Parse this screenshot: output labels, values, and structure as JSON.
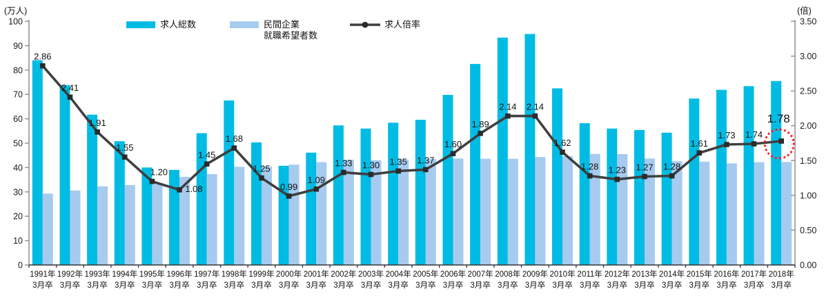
{
  "chart_data": {
    "type": "combo-bar-line",
    "title": "",
    "categories": [
      "1991年",
      "1992年",
      "1993年",
      "1994年",
      "1995年",
      "1996年",
      "1997年",
      "1998年",
      "1999年",
      "2000年",
      "2001年",
      "2002年",
      "2003年",
      "2004年",
      "2005年",
      "2006年",
      "2007年",
      "2008年",
      "2009年",
      "2010年",
      "2011年",
      "2012年",
      "2013年",
      "2014年",
      "2015年",
      "2016年",
      "2017年",
      "2018年"
    ],
    "category_line2": "3月卒",
    "series": [
      {
        "key": "total",
        "name": "求人総数",
        "type": "bar",
        "axis": "left",
        "color": "#00BCE4",
        "values": [
          84.0,
          73.8,
          61.7,
          50.8,
          40.0,
          39.0,
          54.1,
          67.5,
          50.3,
          40.7,
          46.1,
          57.3,
          56.0,
          58.4,
          59.6,
          69.8,
          82.5,
          93.3,
          94.8,
          72.5,
          58.2,
          56.0,
          55.4,
          54.3,
          68.3,
          71.9,
          73.4,
          75.5
        ]
      },
      {
        "key": "applicants",
        "name": "民間企業\n就職希望者数",
        "type": "bar",
        "axis": "left",
        "color": "#A7CBEF",
        "values": [
          29.3,
          30.6,
          32.3,
          32.8,
          33.2,
          36.2,
          37.3,
          40.3,
          40.3,
          41.2,
          42.2,
          43.2,
          43.0,
          43.3,
          43.5,
          43.7,
          43.6,
          43.6,
          44.3,
          44.7,
          45.6,
          45.5,
          43.7,
          42.6,
          42.4,
          41.7,
          42.2,
          42.3
        ]
      },
      {
        "key": "ratio",
        "name": "求人倍率",
        "type": "line",
        "axis": "right",
        "color": "#3F3F3F",
        "marker": "square",
        "values": [
          2.86,
          2.41,
          1.91,
          1.55,
          1.2,
          1.08,
          1.45,
          1.68,
          1.25,
          0.99,
          1.09,
          1.33,
          1.3,
          1.35,
          1.37,
          1.6,
          1.89,
          2.14,
          2.14,
          1.62,
          1.28,
          1.23,
          1.27,
          1.28,
          1.61,
          1.73,
          1.74,
          1.78
        ],
        "labels": [
          "2.86",
          "2.41",
          "1.91",
          "1.55",
          "1.20",
          "1.08",
          "1.45",
          "1.68",
          "1.25",
          "0.99",
          "1.09",
          "1.33",
          "1.30",
          "1.35",
          "1.37",
          "1.60",
          "1.89",
          "2.14",
          "2.14",
          "1.62",
          "1.28",
          "1.23",
          "1.27",
          "1.28",
          "1.61",
          "1.73",
          "1.74",
          "1.78"
        ]
      }
    ],
    "left_axis": {
      "unit": "(万人)",
      "min": 0,
      "max": 100,
      "step": 10,
      "ticks": [
        "0",
        "10",
        "20",
        "30",
        "40",
        "50",
        "60",
        "70",
        "80",
        "90",
        "100"
      ]
    },
    "right_axis": {
      "unit": "(倍)",
      "min": 0,
      "max": 3.5,
      "step": 0.5,
      "ticks": [
        "0.00",
        "0.50",
        "1.00",
        "1.50",
        "2.00",
        "2.50",
        "3.00",
        "3.50"
      ]
    },
    "legend": [
      {
        "label": "求人総数"
      },
      {
        "label": "民間企業\n就職希望者数"
      },
      {
        "label": "求人倍率"
      }
    ],
    "annotation": {
      "type": "dotted-circle",
      "index": 27,
      "color": "#FF1F1F",
      "emphasized_label": "1.78"
    },
    "layout": {
      "grid": false,
      "legend_position": "top",
      "x_range": "1991年3月卒〜2018年3月卒"
    }
  }
}
